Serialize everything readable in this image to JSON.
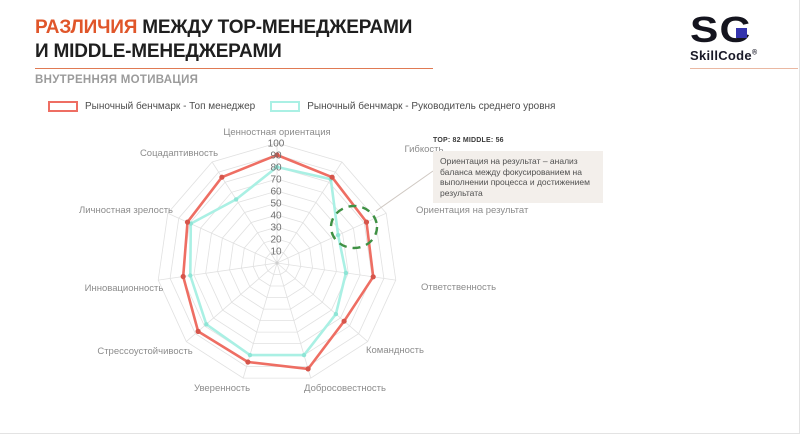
{
  "header": {
    "title_accent": "РАЗЛИЧИЯ",
    "title_rest": " МЕЖДУ TOP-МЕНЕДЖЕРАМИ",
    "title_line2": "И MIDDLE-МЕНЕДЖЕРАМИ",
    "subtitle": "ВНУТРЕННЯЯ МОТИВАЦИЯ",
    "accent_color": "#e0562a"
  },
  "logo": {
    "mark": "SC",
    "wordmark": "SkillCode",
    "registered": "®",
    "square_color": "#3434ae"
  },
  "legend": [
    {
      "label": "Рыночный бенчмарк - Топ менеджер",
      "color": "#ee6e63"
    },
    {
      "label": "Рыночный бенчмарк - Руководитель среднего уровня",
      "color": "#aaf0e4"
    }
  ],
  "annotation": {
    "header": "TOP: 82 MIDDLE: 56",
    "body": "Ориентация на результат – анализ баланса между фокусированием на выполнении процесса и достижением результата",
    "target_category": "Ориентация на результат"
  },
  "chart_data": {
    "type": "radar",
    "title": "Внутренняя мотивация — различия между TOP- и MIDDLE-менеджерами",
    "categories": [
      "Ценностная ориентация",
      "Гибкость",
      "Ориентация на результат",
      "Ответственность",
      "Командность",
      "Добросовестность",
      "Уверенность",
      "Стрессоустойчивость",
      "Инновационность",
      "Личностная зрелость",
      "Соцадаптивность"
    ],
    "series": [
      {
        "name": "Рыночный бенчмарк - Топ менеджер",
        "color": "#ee6e63",
        "marker_color": "#d6554b",
        "values": [
          90,
          85,
          82,
          81,
          74,
          92,
          86,
          87,
          79,
          82,
          85
        ]
      },
      {
        "name": "Рыночный бенчмарк - Руководитель среднего уровня",
        "color": "#aaf0e4",
        "marker_color": "#8ee5d6",
        "values": [
          80,
          83,
          56,
          58,
          65,
          80,
          80,
          78,
          73,
          79,
          63
        ]
      }
    ],
    "tick_values": [
      10,
      20,
      30,
      40,
      50,
      60,
      70,
      80,
      90,
      100
    ],
    "rmax": 100,
    "grid": true,
    "legend_position": "top",
    "highlight_color": "#3f9144"
  }
}
